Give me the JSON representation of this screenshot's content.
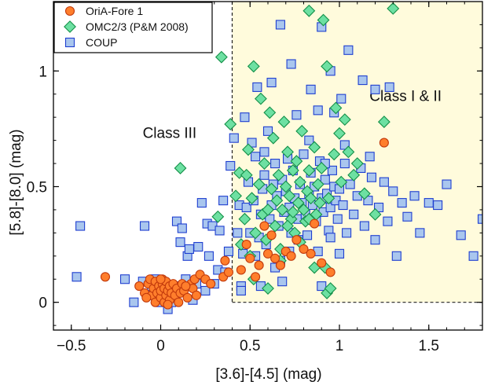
{
  "chart_data": {
    "type": "scatter",
    "xlabel": "[3.6]-[4.5]  (mag)",
    "ylabel": "[5.8]-[8.0] (mag)",
    "xlim": [
      -0.6,
      1.8
    ],
    "ylim": [
      -0.12,
      1.3
    ],
    "xticks": [
      -0.5,
      0,
      0.5,
      1,
      1.5
    ],
    "yticks": [
      0,
      0.5,
      1
    ],
    "xticklabels": [
      "−0.5",
      "0",
      "0.5",
      "1",
      "1.5"
    ],
    "yticklabels": [
      "0",
      "0.5",
      "1"
    ],
    "grid": false,
    "legend_position": "top-left",
    "region": {
      "x_min": 0.4,
      "y_min": 0.0,
      "label": "Class I & II",
      "color": "#fffbdc"
    },
    "annotations": [
      {
        "text": "Class III",
        "x": 0.05,
        "y": 0.71
      },
      {
        "text": "Class I & II",
        "x": 1.37,
        "y": 0.87
      }
    ],
    "series": [
      {
        "name": "COUP",
        "marker": "square",
        "fill": "#a9c6ee",
        "stroke": "#1f3fd0",
        "points": [
          [
            -0.47,
            0.11
          ],
          [
            -0.45,
            0.33
          ],
          [
            -0.2,
            0.1
          ],
          [
            -0.15,
            0.0
          ],
          [
            -0.1,
            0.09
          ],
          [
            -0.09,
            0.33
          ],
          [
            -0.07,
            0.03
          ],
          [
            -0.05,
            0.07
          ],
          [
            -0.03,
            0.1
          ],
          [
            -0.02,
            0.06
          ],
          [
            0.0,
            0.0
          ],
          [
            0.02,
            0.03
          ],
          [
            0.04,
            -0.03
          ],
          [
            0.06,
            0.0
          ],
          [
            0.08,
            0.02
          ],
          [
            0.09,
            0.35
          ],
          [
            0.1,
            0.07
          ],
          [
            0.11,
            0.26
          ],
          [
            0.12,
            0.32
          ],
          [
            0.14,
            0.1
          ],
          [
            0.15,
            0.2
          ],
          [
            0.16,
            0.23
          ],
          [
            0.18,
            0.01
          ],
          [
            0.2,
            0.08
          ],
          [
            0.21,
            0.24
          ],
          [
            0.23,
            0.43
          ],
          [
            0.25,
            0.05
          ],
          [
            0.26,
            0.34
          ],
          [
            0.27,
            0.2
          ],
          [
            0.29,
            0.33
          ],
          [
            0.3,
            0.08
          ],
          [
            0.32,
            0.14
          ],
          [
            0.33,
            0.31
          ],
          [
            0.35,
            0.44
          ],
          [
            0.36,
            0.13
          ],
          [
            0.38,
            0.22
          ],
          [
            0.39,
            0.59
          ],
          [
            0.41,
            0.71
          ],
          [
            0.43,
            0.3
          ],
          [
            0.44,
            0.42
          ],
          [
            0.45,
            0.07
          ],
          [
            0.46,
            0.21
          ],
          [
            0.48,
            0.41
          ],
          [
            0.49,
            0.52
          ],
          [
            0.5,
            0.3
          ],
          [
            0.51,
            0.69
          ],
          [
            0.52,
            0.44
          ],
          [
            0.53,
            0.63
          ],
          [
            0.54,
            0.93
          ],
          [
            0.55,
            0.28
          ],
          [
            0.56,
            0.38
          ],
          [
            0.57,
            0.49
          ],
          [
            0.58,
            0.55
          ],
          [
            0.59,
            0.25
          ],
          [
            0.6,
            0.74
          ],
          [
            0.61,
            0.36
          ],
          [
            0.62,
            0.42
          ],
          [
            0.63,
            0.51
          ],
          [
            0.64,
            0.6
          ],
          [
            0.65,
            0.46
          ],
          [
            0.66,
            0.33
          ],
          [
            0.67,
            0.18
          ],
          [
            0.68,
            0.53
          ],
          [
            0.69,
            0.39
          ],
          [
            0.7,
            0.48
          ],
          [
            0.71,
            0.62
          ],
          [
            0.72,
            0.41
          ],
          [
            0.73,
            0.3
          ],
          [
            0.74,
            0.57
          ],
          [
            0.75,
            0.45
          ],
          [
            0.76,
            0.81
          ],
          [
            0.77,
            0.36
          ],
          [
            0.78,
            0.51
          ],
          [
            0.79,
            0.43
          ],
          [
            0.8,
            0.64
          ],
          [
            0.81,
            0.38
          ],
          [
            0.82,
            0.29
          ],
          [
            0.83,
            0.47
          ],
          [
            0.84,
            0.56
          ],
          [
            0.85,
            0.42
          ],
          [
            0.86,
            0.5
          ],
          [
            0.87,
            0.35
          ],
          [
            0.88,
            0.22
          ],
          [
            0.89,
            0.61
          ],
          [
            0.9,
            0.45
          ],
          [
            0.91,
            0.39
          ],
          [
            0.92,
            0.53
          ],
          [
            0.93,
            0.47
          ],
          [
            0.94,
            0.31
          ],
          [
            0.95,
            0.41
          ],
          [
            0.96,
            0.57
          ],
          [
            0.97,
            0.5
          ],
          [
            0.98,
            0.44
          ],
          [
            0.99,
            0.36
          ],
          [
            1.0,
            0.49
          ],
          [
            1.02,
            0.42
          ],
          [
            1.03,
            0.68
          ],
          [
            1.04,
            0.3
          ],
          [
            1.06,
            0.51
          ],
          [
            1.08,
            0.38
          ],
          [
            1.1,
            0.46
          ],
          [
            1.12,
            0.58
          ],
          [
            1.14,
            0.33
          ],
          [
            1.16,
            0.44
          ],
          [
            1.18,
            0.54
          ],
          [
            1.2,
            0.27
          ],
          [
            1.22,
            0.41
          ],
          [
            1.25,
            0.52
          ],
          [
            1.27,
            0.35
          ],
          [
            1.3,
            0.48
          ],
          [
            1.32,
            0.2
          ],
          [
            1.35,
            0.43
          ],
          [
            1.38,
            0.37
          ],
          [
            1.42,
            0.46
          ],
          [
            1.45,
            0.3
          ],
          [
            1.5,
            0.43
          ],
          [
            1.55,
            0.42
          ],
          [
            1.6,
            0.51
          ],
          [
            1.68,
            0.29
          ],
          [
            1.75,
            0.2
          ],
          [
            1.8,
            0.36
          ],
          [
            0.84,
            0.92
          ],
          [
            0.9,
            1.19
          ],
          [
            0.95,
            1.0
          ],
          [
            1.01,
            0.88
          ],
          [
            1.05,
            1.09
          ],
          [
            1.13,
            0.96
          ],
          [
            1.2,
            0.92
          ],
          [
            1.28,
            0.93
          ],
          [
            0.88,
            0.83
          ],
          [
            0.97,
            0.82
          ],
          [
            0.62,
            0.95
          ],
          [
            0.73,
            1.03
          ],
          [
            0.67,
            1.2
          ],
          [
            0.47,
            0.8
          ],
          [
            0.58,
            0.65
          ],
          [
            0.83,
            0.7
          ],
          [
            0.92,
            0.6
          ],
          [
            1.03,
            0.6
          ],
          [
            1.17,
            0.63
          ],
          [
            0.45,
            0.05
          ],
          [
            0.56,
            0.07
          ],
          [
            0.9,
            0.07
          ],
          [
            0.77,
            0.27
          ],
          [
            0.64,
            0.15
          ],
          [
            0.53,
            0.2
          ],
          [
            0.95,
            0.28
          ],
          [
            1.0,
            0.21
          ],
          [
            0.72,
            0.22
          ],
          [
            0.68,
            0.09
          ]
        ]
      },
      {
        "name": "OMC2/3 (P&M 2008)",
        "marker": "diamond",
        "fill": "#6de0a2",
        "stroke": "#149048",
        "points": [
          [
            0.11,
            0.58
          ],
          [
            0.32,
            0.37
          ],
          [
            0.34,
            1.06
          ],
          [
            0.39,
            0.77
          ],
          [
            0.42,
            0.46
          ],
          [
            0.44,
            0.56
          ],
          [
            0.45,
            0.25
          ],
          [
            0.47,
            0.36
          ],
          [
            0.49,
            0.66
          ],
          [
            0.5,
            0.2
          ],
          [
            0.51,
            0.45
          ],
          [
            0.52,
            1.02
          ],
          [
            0.53,
            0.3
          ],
          [
            0.55,
            0.51
          ],
          [
            0.56,
            0.88
          ],
          [
            0.57,
            0.38
          ],
          [
            0.58,
            0.6
          ],
          [
            0.59,
            0.27
          ],
          [
            0.6,
            0.4
          ],
          [
            0.61,
            0.82
          ],
          [
            0.62,
            0.49
          ],
          [
            0.63,
            0.71
          ],
          [
            0.64,
            0.33
          ],
          [
            0.65,
            0.44
          ],
          [
            0.66,
            0.55
          ],
          [
            0.67,
            0.23
          ],
          [
            0.68,
            0.4
          ],
          [
            0.69,
            0.78
          ],
          [
            0.7,
            0.5
          ],
          [
            0.71,
            0.65
          ],
          [
            0.72,
            0.46
          ],
          [
            0.73,
            0.36
          ],
          [
            0.74,
            0.57
          ],
          [
            0.75,
            0.3
          ],
          [
            0.76,
            0.61
          ],
          [
            0.77,
            0.43
          ],
          [
            0.78,
            0.52
          ],
          [
            0.79,
            0.74
          ],
          [
            0.8,
            0.4
          ],
          [
            0.81,
            0.35
          ],
          [
            0.82,
            0.48
          ],
          [
            0.83,
            0.57
          ],
          [
            0.84,
            0.45
          ],
          [
            0.86,
            0.67
          ],
          [
            0.87,
            0.38
          ],
          [
            0.88,
            0.51
          ],
          [
            0.89,
            0.43
          ],
          [
            0.9,
            0.58
          ],
          [
            0.92,
            0.15
          ],
          [
            0.93,
            0.04
          ],
          [
            0.95,
            0.06
          ],
          [
            0.97,
            0.64
          ],
          [
            1.0,
            0.73
          ],
          [
            1.03,
            0.79
          ],
          [
            1.05,
            0.65
          ],
          [
            1.08,
            0.55
          ],
          [
            1.1,
            0.6
          ],
          [
            1.14,
            0.47
          ],
          [
            1.2,
            0.38
          ],
          [
            1.25,
            0.78
          ],
          [
            1.3,
            1.27
          ],
          [
            0.83,
            1.26
          ],
          [
            0.91,
            1.22
          ],
          [
            0.93,
            1.02
          ],
          [
            0.98,
            0.84
          ],
          [
            0.67,
            0.18
          ],
          [
            0.78,
            0.26
          ],
          [
            0.86,
            0.15
          ],
          [
            0.6,
            0.06
          ],
          [
            0.71,
            0.33
          ],
          [
            0.74,
            0.39
          ],
          [
            0.83,
            0.36
          ],
          [
            0.94,
            0.45
          ],
          [
            1.01,
            0.52
          ],
          [
            0.52,
            0.1
          ],
          [
            0.48,
            0.55
          ]
        ]
      },
      {
        "name": "OriA-Fore 1",
        "marker": "circle",
        "fill": "#ff7e2c",
        "stroke": "#c23a0c",
        "points": [
          [
            -0.31,
            0.11
          ],
          [
            -0.12,
            0.07
          ],
          [
            -0.09,
            0.04
          ],
          [
            -0.07,
            0.08
          ],
          [
            -0.06,
            0.1
          ],
          [
            -0.05,
            0.03
          ],
          [
            -0.04,
            0.06
          ],
          [
            -0.03,
            0.0
          ],
          [
            -0.03,
            0.09
          ],
          [
            -0.02,
            0.04
          ],
          [
            -0.01,
            0.07
          ],
          [
            0.0,
            0.02
          ],
          [
            0.0,
            0.05
          ],
          [
            0.01,
            0.08
          ],
          [
            0.01,
            0.1
          ],
          [
            0.02,
            0.0
          ],
          [
            0.02,
            0.06
          ],
          [
            0.03,
            0.03
          ],
          [
            0.03,
            0.09
          ],
          [
            0.04,
            0.05
          ],
          [
            0.05,
            0.07
          ],
          [
            0.05,
            0.01
          ],
          [
            0.06,
            0.04
          ],
          [
            0.07,
            0.08
          ],
          [
            0.08,
            0.03
          ],
          [
            0.09,
            0.06
          ],
          [
            0.1,
            0.0
          ],
          [
            0.11,
            0.04
          ],
          [
            0.12,
            0.08
          ],
          [
            0.13,
            0.05
          ],
          [
            0.15,
            0.02
          ],
          [
            0.17,
            0.08
          ],
          [
            0.18,
            0.06
          ],
          [
            0.19,
            0.1
          ],
          [
            0.2,
            0.03
          ],
          [
            0.22,
            0.12
          ],
          [
            0.25,
            0.1
          ],
          [
            0.28,
            0.08
          ],
          [
            0.35,
            0.11
          ],
          [
            0.36,
            0.18
          ],
          [
            0.38,
            0.13
          ],
          [
            0.45,
            0.14
          ],
          [
            0.48,
            0.25
          ],
          [
            0.5,
            0.19
          ],
          [
            0.53,
            0.11
          ],
          [
            0.55,
            0.16
          ],
          [
            0.58,
            0.33
          ],
          [
            0.6,
            0.21
          ],
          [
            0.62,
            0.29
          ],
          [
            0.64,
            0.19
          ],
          [
            0.67,
            0.16
          ],
          [
            0.7,
            0.22
          ],
          [
            0.73,
            0.2
          ],
          [
            0.76,
            0.27
          ],
          [
            0.8,
            0.23
          ],
          [
            0.84,
            0.21
          ],
          [
            0.86,
            0.34
          ],
          [
            0.9,
            0.17
          ],
          [
            0.95,
            0.13
          ],
          [
            1.25,
            0.69
          ],
          [
            -0.08,
            0.02
          ],
          [
            0.04,
            -0.01
          ],
          [
            0.14,
            0.07
          ],
          [
            0.0,
            0.1
          ]
        ]
      }
    ]
  }
}
